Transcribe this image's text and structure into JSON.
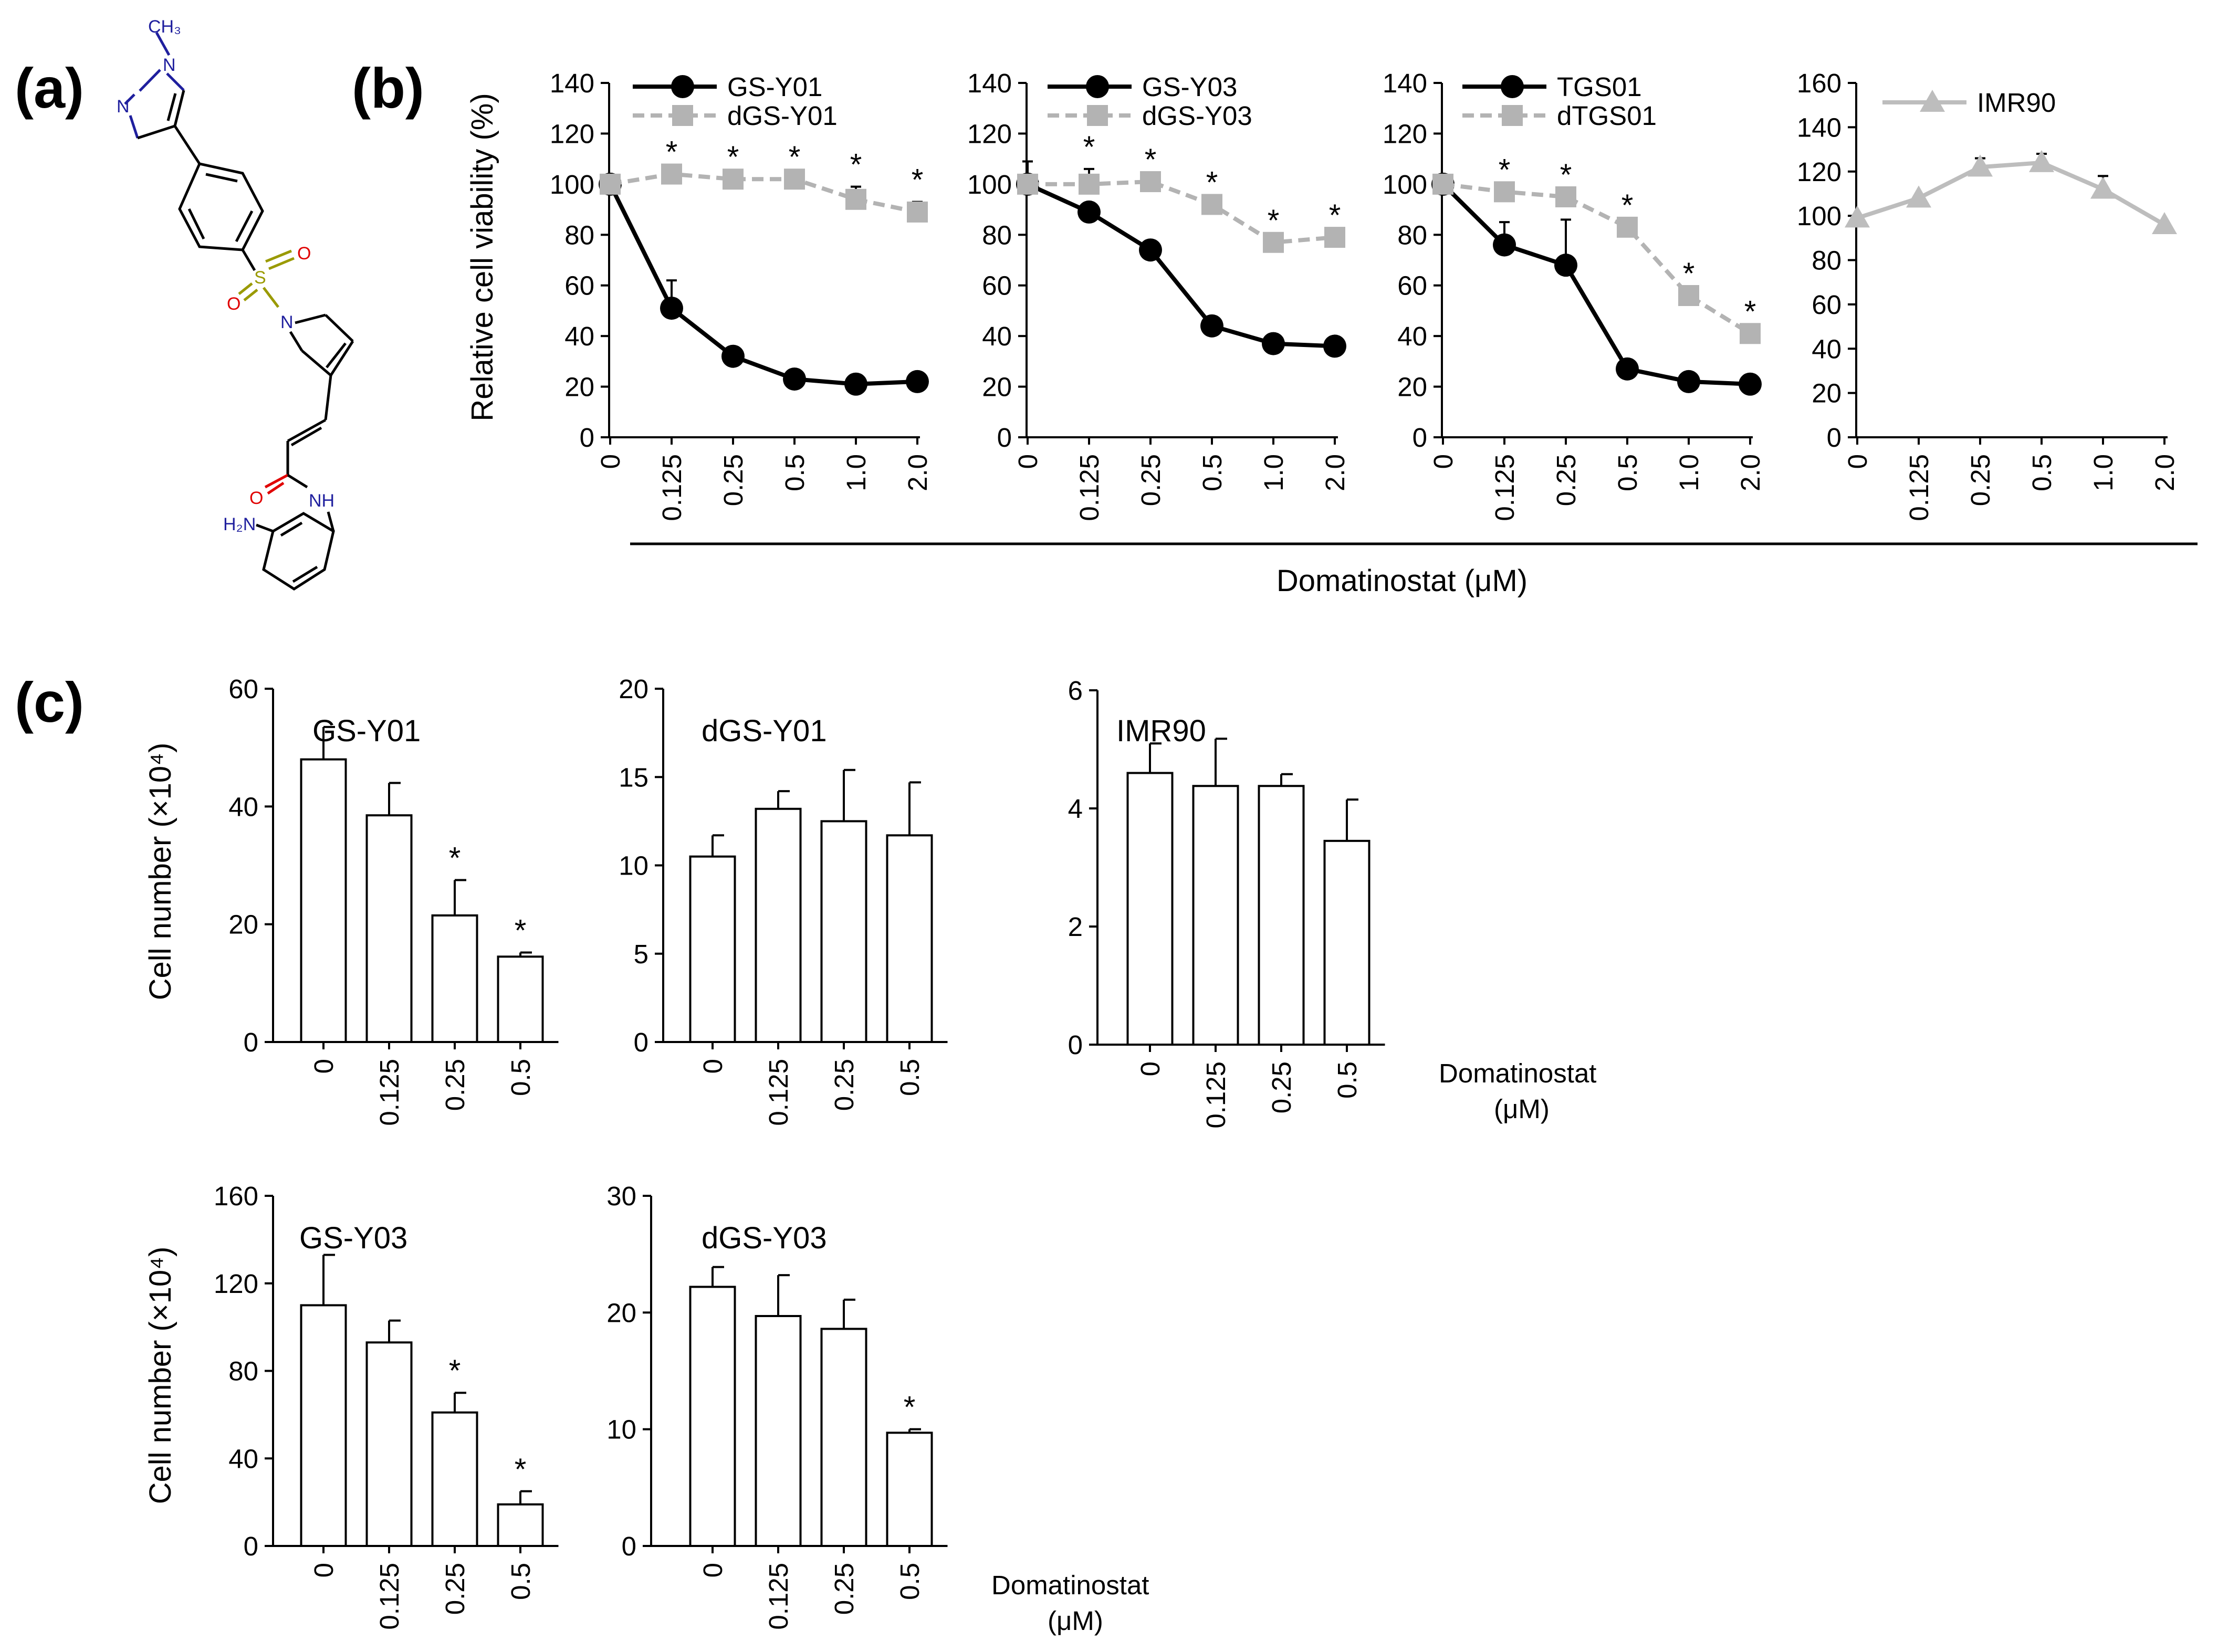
{
  "panel_labels": {
    "a": "(a)",
    "b": "(b)",
    "c": "(c)"
  },
  "structure": {
    "atoms": {
      "ch3": "CH₃",
      "n1": "N",
      "n2": "N",
      "s": "S",
      "o1": "O",
      "o2": "O",
      "n_pyrrole": "N",
      "o_amide": "O",
      "nh": "NH",
      "nh2": "H₂N"
    },
    "colors": {
      "bond": "#000000",
      "nitrogen": "#1f1f9e",
      "oxygen": "#e00000",
      "sulfur": "#9a9a00"
    }
  },
  "panel_b": {
    "x_title": "Domatinostat  (μM)",
    "y_title": "Relative cell viability (%)"
  },
  "panel_c": {
    "y_title": "Cell number  (×10⁴)",
    "x_unit_line1": "Domatinostat",
    "x_unit_line2": "(μM)"
  },
  "colors": {
    "tumor": "#000000",
    "differentiated": "#b3b3b3",
    "fibroblast": "#bdbdbd"
  },
  "chart_data": [
    {
      "id": "b1",
      "type": "line",
      "categories": [
        "0",
        "0.125",
        "0.25",
        "0.5",
        "1.0",
        "2.0"
      ],
      "ylim": [
        0,
        140
      ],
      "yticks": [
        0,
        20,
        40,
        60,
        80,
        100,
        120,
        140
      ],
      "series": [
        {
          "name": "GS-Y01",
          "style": "solid-circle",
          "values": [
            100,
            51,
            32,
            23,
            21,
            22
          ],
          "errors": [
            0,
            11,
            0,
            0,
            0,
            0
          ]
        },
        {
          "name": "dGS-Y01",
          "style": "dashed-square",
          "values": [
            100,
            104,
            102,
            102,
            94,
            89
          ],
          "errors": [
            0,
            0,
            0,
            0,
            5,
            4
          ]
        }
      ],
      "stars": [
        "",
        "*",
        "*",
        "*",
        "*",
        "*"
      ]
    },
    {
      "id": "b2",
      "type": "line",
      "categories": [
        "0",
        "0.125",
        "0.25",
        "0.5",
        "1.0",
        "2.0"
      ],
      "ylim": [
        0,
        140
      ],
      "yticks": [
        0,
        20,
        40,
        60,
        80,
        100,
        120,
        140
      ],
      "series": [
        {
          "name": "GS-Y03",
          "style": "solid-circle",
          "values": [
            100,
            89,
            74,
            44,
            37,
            36
          ],
          "errors": [
            0,
            0,
            0,
            0,
            0,
            0
          ]
        },
        {
          "name": "dGS-Y03",
          "style": "dashed-square",
          "values": [
            100,
            100,
            101,
            92,
            77,
            79
          ],
          "errors": [
            9,
            6,
            0,
            0,
            0,
            0
          ]
        }
      ],
      "stars": [
        "",
        "*",
        "*",
        "*",
        "*",
        "*"
      ]
    },
    {
      "id": "b3",
      "type": "line",
      "categories": [
        "0",
        "0.125",
        "0.25",
        "0.5",
        "1.0",
        "2.0"
      ],
      "ylim": [
        0,
        140
      ],
      "yticks": [
        0,
        20,
        40,
        60,
        80,
        100,
        120,
        140
      ],
      "series": [
        {
          "name": "TGS01",
          "style": "solid-circle",
          "values": [
            100,
            76,
            68,
            27,
            22,
            21
          ],
          "errors": [
            0,
            9,
            18,
            0,
            0,
            0
          ]
        },
        {
          "name": "dTGS01",
          "style": "dashed-square",
          "values": [
            100,
            97,
            95,
            83,
            56,
            41
          ],
          "errors": [
            0,
            0,
            0,
            0,
            0,
            0
          ]
        }
      ],
      "stars": [
        "",
        "*",
        "*",
        "*",
        "*",
        "*"
      ]
    },
    {
      "id": "b4",
      "type": "line",
      "categories": [
        "0",
        "0.125",
        "0.25",
        "0.5",
        "1.0",
        "2.0"
      ],
      "ylim": [
        0,
        160
      ],
      "yticks": [
        0,
        20,
        40,
        60,
        80,
        100,
        120,
        140,
        160
      ],
      "series": [
        {
          "name": "IMR90",
          "style": "solid-triangle",
          "values": [
            99,
            108,
            122,
            124,
            112,
            96
          ],
          "errors": [
            0,
            0,
            4,
            4,
            6,
            0
          ]
        }
      ],
      "stars": [
        "",
        "",
        "",
        "",
        "",
        ""
      ]
    },
    {
      "id": "c1",
      "type": "bar",
      "title": "GS-Y01",
      "categories": [
        "0",
        "0.125",
        "0.25",
        "0.5"
      ],
      "values": [
        48,
        38.5,
        21.5,
        14.5
      ],
      "errors": [
        5.5,
        5.5,
        6,
        0.7
      ],
      "ylim": [
        0,
        60
      ],
      "yticks": [
        0,
        20,
        40,
        60
      ],
      "stars": [
        "",
        "",
        "*",
        "*"
      ]
    },
    {
      "id": "c2",
      "type": "bar",
      "title": "dGS-Y01",
      "categories": [
        "0",
        "0.125",
        "0.25",
        "0.5"
      ],
      "values": [
        10.5,
        13.2,
        12.5,
        11.7
      ],
      "errors": [
        1.2,
        1.0,
        2.9,
        3.0
      ],
      "ylim": [
        0,
        20
      ],
      "yticks": [
        0,
        5,
        10,
        15,
        20
      ],
      "stars": [
        "",
        "",
        "",
        ""
      ]
    },
    {
      "id": "c3",
      "type": "bar",
      "title": "IMR90",
      "categories": [
        "0",
        "0.125",
        "0.25",
        "0.5"
      ],
      "values": [
        4.6,
        4.38,
        4.38,
        3.45
      ],
      "errors": [
        0.5,
        0.8,
        0.2,
        0.7
      ],
      "ylim": [
        0,
        6
      ],
      "yticks": [
        0,
        2,
        4,
        6
      ],
      "stars": [
        "",
        "",
        "",
        ""
      ]
    },
    {
      "id": "c4",
      "type": "bar",
      "title": "GS-Y03",
      "categories": [
        "0",
        "0.125",
        "0.25",
        "0.5"
      ],
      "values": [
        110,
        93,
        61,
        19
      ],
      "errors": [
        23,
        10,
        9,
        6
      ],
      "ylim": [
        0,
        160
      ],
      "yticks": [
        0,
        40,
        80,
        120,
        160
      ],
      "stars": [
        "",
        "",
        "*",
        "*"
      ]
    },
    {
      "id": "c5",
      "type": "bar",
      "title": "dGS-Y03",
      "categories": [
        "0",
        "0.125",
        "0.25",
        "0.5"
      ],
      "values": [
        22.2,
        19.7,
        18.6,
        9.7
      ],
      "errors": [
        1.7,
        3.5,
        2.5,
        0.3
      ],
      "ylim": [
        0,
        30
      ],
      "yticks": [
        0,
        10,
        20,
        30
      ],
      "stars": [
        "",
        "",
        "",
        "*"
      ]
    }
  ]
}
